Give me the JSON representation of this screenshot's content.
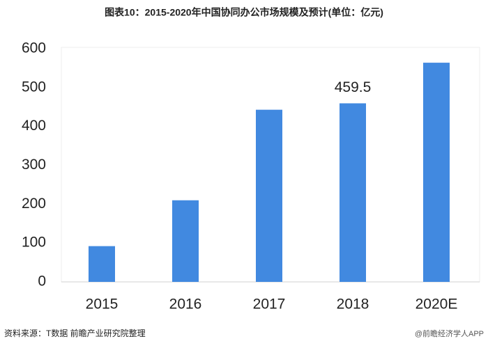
{
  "chart_data": {
    "type": "bar",
    "title": "图表10：2015-2020年中国协同办公市场规模及预计(单位：亿元)",
    "categories": [
      "2015",
      "2016",
      "2017",
      "2018",
      "2020E"
    ],
    "values": [
      92,
      210,
      443,
      459.5,
      564
    ],
    "value_labels": [
      null,
      null,
      null,
      "459.5",
      null
    ],
    "color": "#4189e0",
    "ylim": [
      0,
      600
    ],
    "yticks": [
      0,
      100,
      200,
      300,
      400,
      500,
      600
    ],
    "grid": false,
    "source": "资料来源：T数据 前瞻产业研究院整理",
    "brand": "@前瞻经济学人APP"
  }
}
